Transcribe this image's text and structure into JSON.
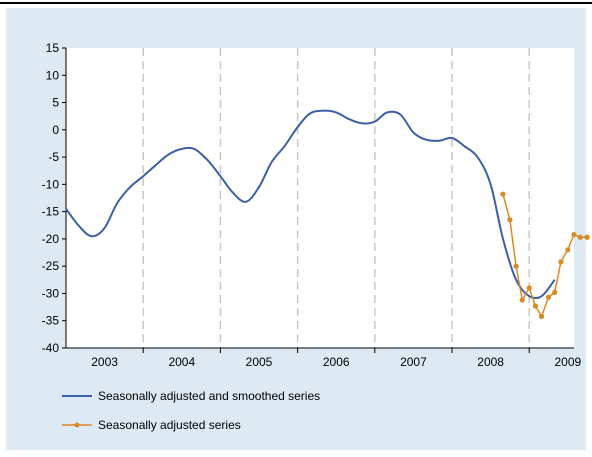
{
  "chart_data": {
    "type": "line",
    "title": "",
    "xlabel": "",
    "ylabel": "",
    "ylim": [
      -40,
      15
    ],
    "yticks": [
      15,
      10,
      5,
      0,
      -5,
      -10,
      -15,
      -20,
      -25,
      -30,
      -35,
      -40
    ],
    "xlim": [
      2002.92,
      2009.5
    ],
    "year_labels": [
      "2003",
      "2004",
      "2005",
      "2006",
      "2007",
      "2008",
      "2009"
    ],
    "year_label_x": [
      2003.42,
      2004.42,
      2005.42,
      2006.42,
      2007.42,
      2008.42,
      2009.42
    ],
    "year_boundaries": [
      2003.92,
      2004.92,
      2005.92,
      2006.92,
      2007.92,
      2008.92
    ],
    "grid": "vertical dashed year separators",
    "legend_position": "bottom",
    "colors": {
      "smoothed": "#3d5fa6",
      "adjusted": "#d98a25",
      "grid": "#c8c8c8",
      "panel": "#dde9f3"
    },
    "series": [
      {
        "name": "Seasonally adjusted and smoothed series",
        "x": [
          2002.92,
          2003.08,
          2003.25,
          2003.42,
          2003.58,
          2003.75,
          2003.92,
          2004.08,
          2004.25,
          2004.42,
          2004.58,
          2004.75,
          2004.92,
          2005.08,
          2005.25,
          2005.42,
          2005.58,
          2005.75,
          2005.92,
          2006.08,
          2006.25,
          2006.42,
          2006.58,
          2006.75,
          2006.92,
          2007.08,
          2007.25,
          2007.42,
          2007.58,
          2007.75,
          2007.92,
          2008.08,
          2008.25,
          2008.42,
          2008.58,
          2008.75,
          2008.92,
          2009.08,
          2009.25
        ],
        "values": [
          -14.5,
          -17.5,
          -19.5,
          -18,
          -13.5,
          -10.5,
          -8.5,
          -6.5,
          -4.5,
          -3.5,
          -3.5,
          -5.5,
          -8.5,
          -11.5,
          -13.2,
          -10.5,
          -6,
          -3,
          0.5,
          3,
          3.5,
          3.2,
          2,
          1.2,
          1.5,
          3.2,
          2.8,
          -0.5,
          -1.8,
          -2,
          -1.5,
          -3,
          -5,
          -10,
          -20,
          -27.5,
          -30.5,
          -30.5,
          -27.5
        ]
      },
      {
        "name": "Seasonally adjusted series",
        "x": [
          2008.58,
          2008.67,
          2008.75,
          2008.83,
          2008.92,
          2009.0,
          2009.08,
          2009.17,
          2009.25,
          2009.33,
          2009.42,
          2009.5,
          2009.58,
          2009.67
        ],
        "values": [
          -11.8,
          -16.5,
          -25,
          -31.2,
          -29,
          -32.3,
          -34.2,
          -30.7,
          -29.8,
          -24.2,
          -22,
          -19.2,
          -19.7,
          -19.7
        ]
      }
    ]
  }
}
